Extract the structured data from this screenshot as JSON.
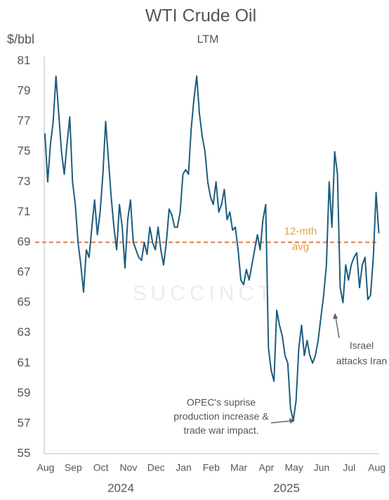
{
  "chart_data": {
    "type": "line",
    "title": "WTI Crude Oil",
    "subtitle": "LTM",
    "y_label": "$/bbl",
    "watermark": "SUCCINCT",
    "ylim": [
      55,
      81
    ],
    "yticks": [
      55,
      57,
      59,
      61,
      63,
      65,
      67,
      69,
      71,
      73,
      75,
      77,
      79,
      81
    ],
    "categories": [
      "Aug",
      null,
      null,
      null,
      null,
      null,
      null,
      null,
      null,
      null,
      "Sep",
      null,
      null,
      null,
      null,
      null,
      null,
      null,
      null,
      null,
      "Oct",
      null,
      null,
      null,
      null,
      null,
      null,
      null,
      null,
      null,
      "Nov",
      null,
      null,
      null,
      null,
      null,
      null,
      null,
      null,
      null,
      "Dec",
      null,
      null,
      null,
      null,
      null,
      null,
      null,
      null,
      null,
      "Jan",
      null,
      null,
      null,
      null,
      null,
      null,
      null,
      null,
      null,
      "Feb",
      null,
      null,
      null,
      null,
      null,
      null,
      null,
      null,
      null,
      "Mar",
      null,
      null,
      null,
      null,
      null,
      null,
      null,
      null,
      null,
      "Apr",
      null,
      null,
      null,
      null,
      null,
      null,
      null,
      null,
      null,
      "May",
      null,
      null,
      null,
      null,
      null,
      null,
      null,
      null,
      null,
      "Jun",
      null,
      null,
      null,
      null,
      null,
      null,
      null,
      null,
      null,
      "Jul",
      null,
      null,
      null,
      null,
      null,
      null,
      null,
      null,
      null,
      "Aug",
      null
    ],
    "year_labels": [
      "2024",
      "2025"
    ],
    "series": [
      {
        "name": "WTI",
        "color": "#1d5c7d",
        "values": [
          76.2,
          73.0,
          75.5,
          77.0,
          80.0,
          77.5,
          75.0,
          73.5,
          75.5,
          77.3,
          73.0,
          71.5,
          69.0,
          67.5,
          65.7,
          68.5,
          68.0,
          70.0,
          71.8,
          69.5,
          71.0,
          73.5,
          77.0,
          74.5,
          72.0,
          70.0,
          68.5,
          71.5,
          70.0,
          67.3,
          70.5,
          71.8,
          69.0,
          68.5,
          68.0,
          67.8,
          69.0,
          68.2,
          70.0,
          69.0,
          68.5,
          70.0,
          68.5,
          67.5,
          69.0,
          71.2,
          70.8,
          70.0,
          70.0,
          71.0,
          73.5,
          73.8,
          73.5,
          76.5,
          78.5,
          80.0,
          77.5,
          76.0,
          75.0,
          73.0,
          72.0,
          71.5,
          73.0,
          71.0,
          71.5,
          72.5,
          70.5,
          71.0,
          69.8,
          70.0,
          68.5,
          66.5,
          66.2,
          67.2,
          66.5,
          67.5,
          68.5,
          69.5,
          68.5,
          70.5,
          71.5,
          62.0,
          60.5,
          59.8,
          64.5,
          63.5,
          62.8,
          61.5,
          61.0,
          58.0,
          57.2,
          58.5,
          62.0,
          63.5,
          61.5,
          62.5,
          61.5,
          61.0,
          61.5,
          62.5,
          64.0,
          65.5,
          67.5,
          73.0,
          70.0,
          75.0,
          73.5,
          66.0,
          65.0,
          67.5,
          66.5,
          67.5,
          68.0,
          68.3,
          66.0,
          67.5,
          68.0,
          65.2,
          65.5,
          68.0,
          72.3,
          69.6
        ]
      }
    ],
    "reference_line": {
      "value": 69,
      "color": "#e07b39",
      "label_color": "#e8a13a",
      "label": [
        "12-mth",
        "avg"
      ]
    },
    "annotations": [
      {
        "lines": [
          "OPEC's suprise",
          "production increase &",
          "trade war impact."
        ]
      },
      {
        "lines": [
          "Israel",
          "attacks Iran"
        ]
      }
    ]
  }
}
